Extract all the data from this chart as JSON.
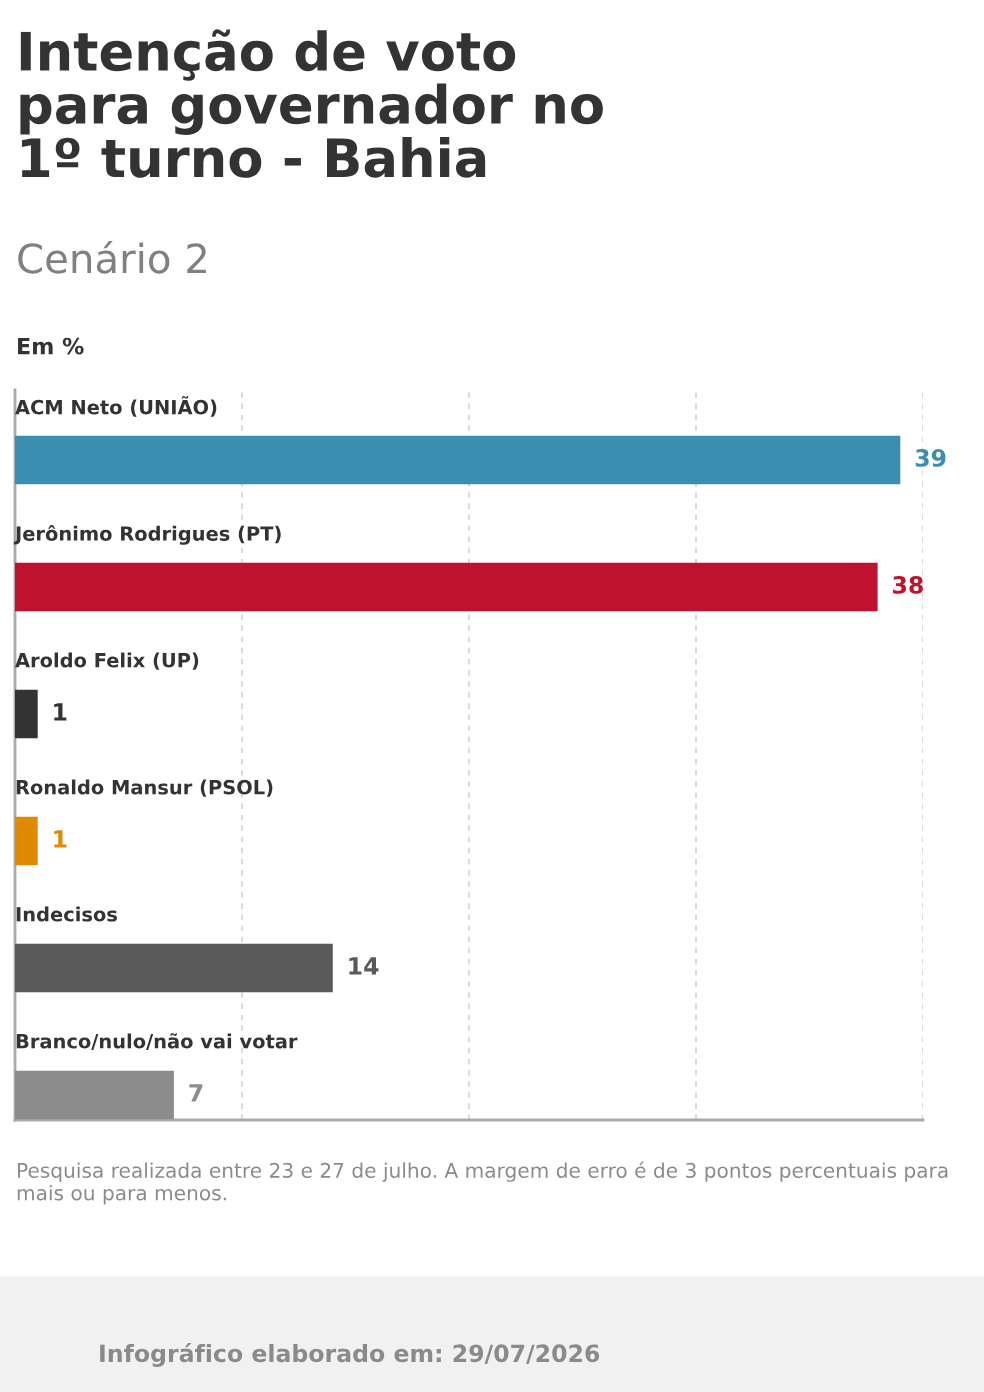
{
  "chart_data": {
    "type": "bar",
    "orientation": "horizontal",
    "title": "Intenção de voto\npara governador no\n1º turno - Bahia",
    "subtitle": "Cenário 2",
    "categories": [
      "ACM Neto (UNIÃO)",
      "Jerônimo Rodrigues (PT)",
      "Aroldo Felix (UP)",
      "Ronaldo Mansur (PSOL)",
      "Indecisos",
      "Branco/nulo/não vai votar"
    ],
    "values": [
      39,
      38,
      1,
      1,
      14,
      7
    ],
    "colors": [
      "#3a8fb0",
      "#c0112e",
      "#333333",
      "#e08a00",
      "#5a5a5a",
      "#8c8c8c"
    ],
    "data_labels": true,
    "xlim": [
      0,
      40
    ],
    "xticks": [
      {
        "value": 0,
        "label": null
      },
      {
        "value": 10,
        "label": null
      },
      {
        "value": 20,
        "label": null
      },
      {
        "value": 30,
        "label": null
      },
      {
        "value": 40,
        "label": null
      }
    ],
    "grid": "x",
    "annotations": [
      "Em %",
      "Pesquisa realizada entre 23 e 27 de julho. A margem de erro é de 3 pontos percentuais para mais ou para menos.",
      "Infográfico elaborado em: 29/07/2026"
    ]
  }
}
